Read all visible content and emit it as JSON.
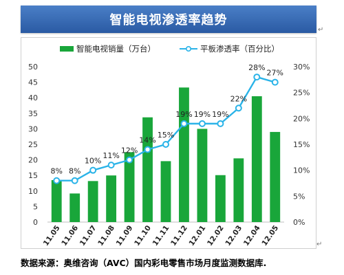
{
  "header": {
    "title": "智能电视渗透率趋势"
  },
  "footer": {
    "source": "数据来源：奥维咨询（AVC）国内彩电零售市场月度监测数据库."
  },
  "marks": {
    "paragraph": "↵"
  },
  "colors": {
    "bar": "#19a63a",
    "line": "#29b3e8",
    "marker_fill": "#ffffff",
    "title_bg": "#3566b4"
  },
  "chart_data": {
    "type": "bar",
    "categories": [
      "11.05",
      "11.06",
      "11.07",
      "11.08",
      "11.09",
      "11.10",
      "11.11",
      "11.12",
      "12.01",
      "12.02",
      "12.03",
      "12.04",
      "12.05"
    ],
    "series": [
      {
        "name": "智能电视销量（万台）",
        "type": "bar",
        "axis": "left",
        "values": [
          13.5,
          9.2,
          13.2,
          15.0,
          22.5,
          33.7,
          19.6,
          43.3,
          30.0,
          15.1,
          20.5,
          40.5,
          29.0
        ]
      },
      {
        "name": "平板渗透率（百分比）",
        "type": "line",
        "axis": "right",
        "values": [
          8,
          8,
          10,
          11,
          12,
          14,
          15,
          19,
          19,
          19,
          22,
          28,
          27
        ],
        "labels": [
          "8%",
          "8%",
          "10%",
          "11%",
          "12%",
          "14%",
          "15%",
          "19%",
          "19%",
          "19%",
          "22%",
          "28%",
          "27%"
        ]
      }
    ],
    "y_left": {
      "ticks": [
        "0",
        "5",
        "10",
        "15",
        "20",
        "25",
        "30",
        "35",
        "40",
        "45",
        "50"
      ],
      "ylim": [
        0,
        50
      ]
    },
    "y_right": {
      "ticks": [
        "0%",
        "5%",
        "10%",
        "15%",
        "20%",
        "25%",
        "30%"
      ],
      "ylim": [
        0,
        30
      ]
    },
    "legend_position": "top",
    "grid": false
  }
}
